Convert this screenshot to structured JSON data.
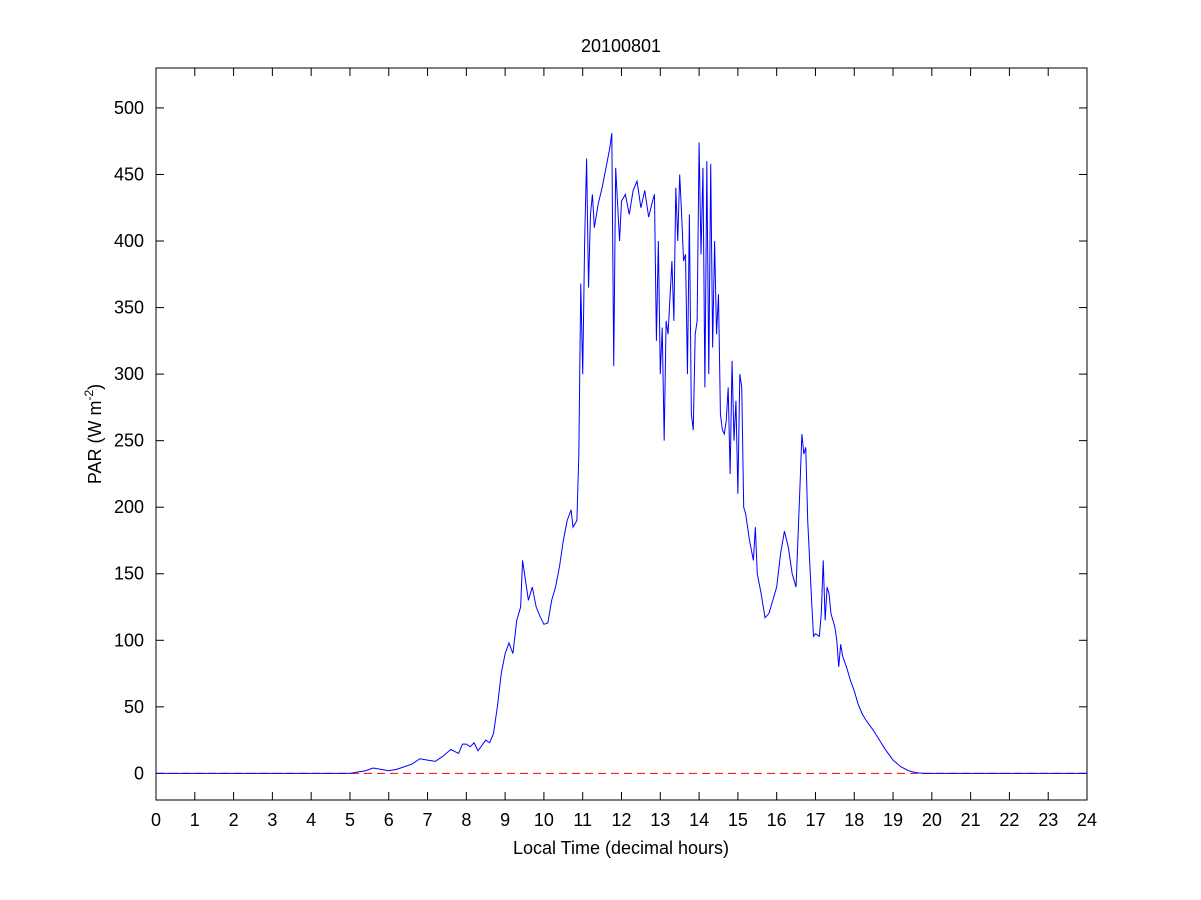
{
  "chart_data": {
    "type": "line",
    "title": "20100801",
    "xlabel": "Local Time (decimal hours)",
    "ylabel": {
      "text": "PAR (W m",
      "superscript": "-2",
      "suffix": ")"
    },
    "x": [
      0,
      5,
      5.2,
      5.4,
      5.6,
      5.8,
      6,
      6.2,
      6.4,
      6.6,
      6.8,
      7,
      7.2,
      7.4,
      7.6,
      7.8,
      7.9,
      8,
      8.1,
      8.2,
      8.3,
      8.5,
      8.6,
      8.7,
      8.8,
      8.9,
      9,
      9.1,
      9.2,
      9.3,
      9.4,
      9.45,
      9.5,
      9.6,
      9.7,
      9.8,
      9.9,
      10,
      10.1,
      10.2,
      10.3,
      10.4,
      10.5,
      10.6,
      10.7,
      10.75,
      10.85,
      10.9,
      10.95,
      11,
      11.05,
      11.1,
      11.15,
      11.2,
      11.25,
      11.3,
      11.4,
      11.5,
      11.6,
      11.7,
      11.75,
      11.8,
      11.85,
      11.95,
      12,
      12.1,
      12.2,
      12.3,
      12.4,
      12.5,
      12.6,
      12.7,
      12.8,
      12.85,
      12.9,
      12.95,
      13,
      13.05,
      13.1,
      13.15,
      13.2,
      13.3,
      13.35,
      13.4,
      13.45,
      13.5,
      13.55,
      13.6,
      13.65,
      13.7,
      13.75,
      13.8,
      13.85,
      13.9,
      13.95,
      14,
      14.05,
      14.1,
      14.15,
      14.2,
      14.25,
      14.3,
      14.35,
      14.4,
      14.45,
      14.5,
      14.55,
      14.6,
      14.65,
      14.7,
      14.75,
      14.8,
      14.85,
      14.9,
      14.95,
      15,
      15.05,
      15.1,
      15.15,
      15.2,
      15.3,
      15.4,
      15.45,
      15.5,
      15.6,
      15.7,
      15.8,
      15.9,
      16,
      16.1,
      16.2,
      16.3,
      16.4,
      16.5,
      16.6,
      16.65,
      16.7,
      16.75,
      16.8,
      16.85,
      16.9,
      16.95,
      17,
      17.1,
      17.15,
      17.2,
      17.25,
      17.3,
      17.35,
      17.4,
      17.5,
      17.55,
      17.6,
      17.65,
      17.7,
      17.8,
      17.9,
      18,
      18.1,
      18.2,
      18.3,
      18.4,
      18.5,
      18.8,
      19,
      19.2,
      19.4,
      19.6,
      19.8,
      24
    ],
    "series": [
      {
        "color": "#0000ff",
        "values": [
          0,
          0,
          1,
          2,
          4,
          3,
          2,
          3,
          5,
          7,
          11,
          10,
          9,
          13,
          18,
          15,
          22,
          22,
          20,
          23,
          17,
          25,
          23,
          30,
          50,
          75,
          90,
          98,
          90,
          115,
          125,
          160,
          150,
          130,
          140,
          125,
          118,
          112,
          113,
          130,
          140,
          155,
          175,
          190,
          198,
          185,
          190,
          240,
          368,
          300,
          400,
          462,
          365,
          420,
          435,
          410,
          428,
          440,
          455,
          470,
          481,
          306,
          455,
          400,
          430,
          435,
          420,
          438,
          445,
          425,
          438,
          418,
          430,
          435,
          325,
          400,
          300,
          335,
          250,
          340,
          330,
          385,
          340,
          440,
          400,
          450,
          420,
          385,
          390,
          300,
          420,
          270,
          258,
          330,
          340,
          474,
          390,
          455,
          290,
          460,
          300,
          458,
          320,
          400,
          330,
          360,
          270,
          258,
          255,
          265,
          290,
          225,
          310,
          250,
          280,
          210,
          300,
          290,
          200,
          195,
          175,
          160,
          185,
          150,
          135,
          117,
          120,
          130,
          140,
          165,
          182,
          170,
          150,
          140,
          215,
          255,
          240,
          245,
          190,
          160,
          130,
          103,
          105,
          103,
          120,
          160,
          115,
          140,
          135,
          120,
          110,
          100,
          80,
          97,
          88,
          80,
          70,
          62,
          52,
          45,
          40,
          36,
          32,
          18,
          10,
          5,
          2,
          0.5,
          0,
          0
        ]
      }
    ],
    "hline": {
      "value": 0,
      "color": "#ff0000",
      "style": "dashed"
    },
    "xlim": [
      0,
      24
    ],
    "xticks": [
      0,
      1,
      2,
      3,
      4,
      5,
      6,
      7,
      8,
      9,
      10,
      11,
      12,
      13,
      14,
      15,
      16,
      17,
      18,
      19,
      20,
      21,
      22,
      23,
      24
    ],
    "ylim": [
      -20,
      530
    ],
    "yticks": [
      0,
      50,
      100,
      150,
      200,
      250,
      300,
      350,
      400,
      450,
      500
    ],
    "grid": false
  }
}
